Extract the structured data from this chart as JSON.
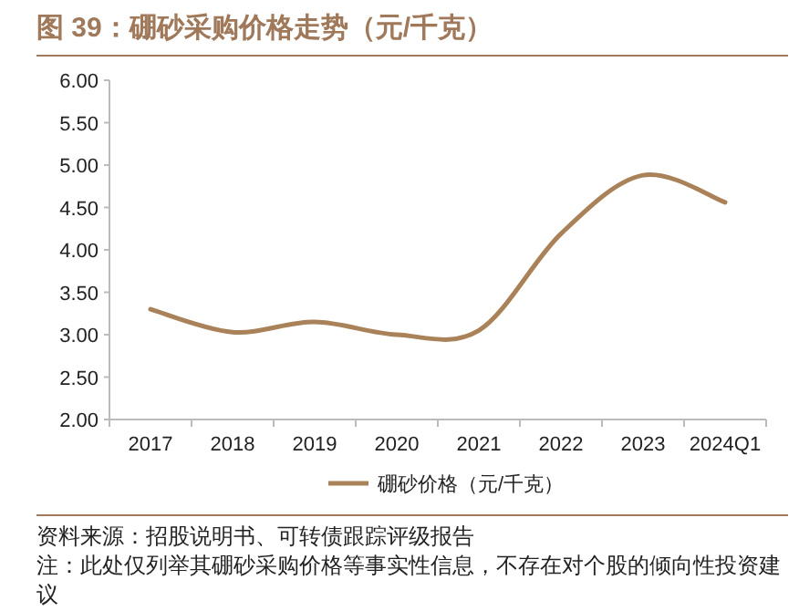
{
  "chart_data": {
    "type": "line",
    "title": "图 39：硼砂采购价格走势（元/千克）",
    "categories": [
      "2017",
      "2018",
      "2019",
      "2020",
      "2021",
      "2022",
      "2023",
      "2024Q1"
    ],
    "series": [
      {
        "name": "硼砂价格（元/千克）",
        "color": "#a98259",
        "values": [
          3.3,
          3.03,
          3.15,
          3.0,
          3.05,
          4.19,
          4.88,
          4.56
        ]
      }
    ],
    "ylim": [
      2,
      6
    ],
    "yticks": [
      {
        "value": 2,
        "label": "2.00"
      },
      {
        "value": 2.5,
        "label": "2.50"
      },
      {
        "value": 3,
        "label": "3.00"
      },
      {
        "value": 3.5,
        "label": "3.50"
      },
      {
        "value": 4,
        "label": "4.00"
      },
      {
        "value": 4.5,
        "label": "4.50"
      },
      {
        "value": 5,
        "label": "5.00"
      },
      {
        "value": 5.5,
        "label": "5.50"
      },
      {
        "value": 6,
        "label": "6.00"
      }
    ],
    "legend": "bottom",
    "grid": false,
    "line_style": "solid",
    "annotations": [
      "资料来源：招股说明书、可转债跟踪评级报告",
      "注：此处仅列举其硼砂采购价格等事实性信息，不存在对个股的倾向性投资建议"
    ]
  }
}
